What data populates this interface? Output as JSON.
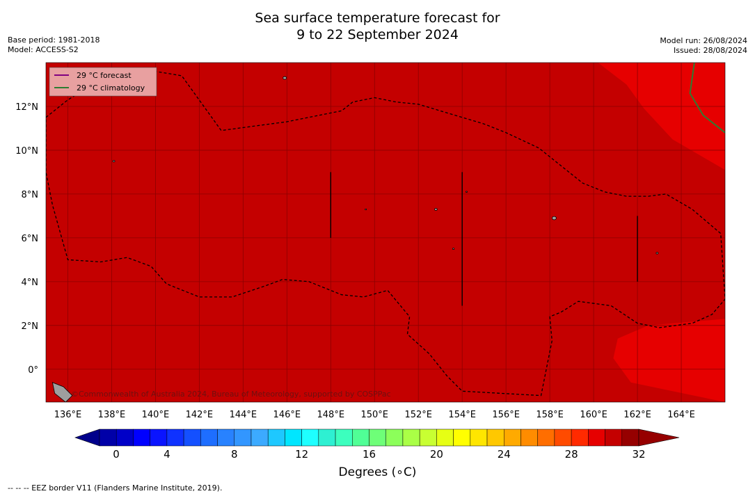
{
  "title_line1": "Sea surface temperature forecast for",
  "title_line2": "9 to 22 September 2024",
  "base_period": "Base period: 1981-2018",
  "model": "Model: ACCESS-S2",
  "model_run": "Model run: 26/08/2024",
  "issued": "Issued: 28/08/2024",
  "copyright": "©Commonwealth of Australia 2024, Bureau of Meteorology, supported by COSPPac",
  "footer_note": "--  --  -- EEZ border V11 (Flanders Marine Institute, 2019).",
  "colorbar_label": "Degrees (∘C)",
  "colors": {
    "sst_29_30": "#c40000",
    "sst_30_31": "#e60000",
    "forecast_line": "#800080",
    "climatology_line": "#2e7d32",
    "eez_line": "#000000",
    "land": "#9e9e9e"
  },
  "chart_data": {
    "type": "heatmap",
    "variable": "Sea surface temperature (°C)",
    "xlim": [
      135,
      166
    ],
    "ylim": [
      -1.5,
      14
    ],
    "x_ticks": [
      136,
      138,
      140,
      142,
      144,
      146,
      148,
      150,
      152,
      154,
      156,
      158,
      160,
      162,
      164
    ],
    "x_tick_labels": [
      "136°E",
      "138°E",
      "140°E",
      "142°E",
      "144°E",
      "146°E",
      "148°E",
      "150°E",
      "152°E",
      "154°E",
      "156°E",
      "158°E",
      "160°E",
      "162°E",
      "164°E"
    ],
    "y_ticks": [
      0,
      2,
      4,
      6,
      8,
      10,
      12
    ],
    "y_tick_labels": [
      "0°",
      "2°N",
      "4°N",
      "6°N",
      "8°N",
      "10°N",
      "12°N"
    ],
    "grid": true,
    "background_value_range": [
      29,
      30
    ],
    "warm_regions": [
      {
        "value_range": [
          30,
          31
        ],
        "polygon": [
          [
            160.2,
            14
          ],
          [
            166,
            14
          ],
          [
            166,
            9.1
          ],
          [
            163.6,
            10.5
          ],
          [
            162.3,
            11.9
          ],
          [
            161.5,
            13.0
          ]
        ]
      },
      {
        "value_range": [
          30,
          31
        ],
        "polygon": [
          [
            166,
            2.3
          ],
          [
            162.5,
            2.0
          ],
          [
            161.1,
            1.4
          ],
          [
            160.9,
            0.5
          ],
          [
            161.7,
            -0.6
          ],
          [
            163.6,
            -1.0
          ],
          [
            166,
            -1.5
          ]
        ]
      }
    ],
    "eez_border": [
      [
        135.0,
        11.5
      ],
      [
        136.0,
        12.3
      ],
      [
        138.0,
        13.5
      ],
      [
        140.0,
        13.6
      ],
      [
        141.2,
        13.4
      ],
      [
        143.0,
        10.9
      ],
      [
        146.0,
        11.3
      ],
      [
        148.0,
        11.7
      ],
      [
        148.5,
        11.8
      ],
      [
        149.0,
        12.2
      ],
      [
        150.0,
        12.4
      ],
      [
        151.0,
        12.2
      ],
      [
        152.0,
        12.1
      ],
      [
        153.0,
        11.8
      ],
      [
        154.0,
        11.5
      ],
      [
        155.0,
        11.2
      ],
      [
        156.0,
        10.8
      ],
      [
        157.5,
        10.1
      ],
      [
        158.5,
        9.3
      ],
      [
        159.5,
        8.5
      ],
      [
        160.5,
        8.1
      ],
      [
        161.5,
        7.9
      ],
      [
        162.5,
        7.9
      ],
      [
        163.3,
        8.0
      ],
      [
        164.5,
        7.3
      ],
      [
        165.8,
        6.2
      ],
      [
        166.0,
        3.2
      ],
      [
        165.4,
        2.5
      ],
      [
        164.5,
        2.1
      ],
      [
        163.0,
        1.9
      ],
      [
        162.0,
        2.1
      ],
      [
        160.8,
        2.9
      ],
      [
        159.3,
        3.1
      ],
      [
        158.5,
        2.6
      ],
      [
        158.0,
        2.4
      ],
      [
        158.1,
        1.3
      ],
      [
        157.6,
        -1.2
      ],
      [
        154.0,
        -1.0
      ],
      [
        153.3,
        -0.3
      ],
      [
        152.5,
        0.7
      ],
      [
        151.5,
        1.6
      ],
      [
        151.6,
        2.4
      ],
      [
        150.6,
        3.6
      ],
      [
        149.5,
        3.3
      ],
      [
        148.5,
        3.4
      ],
      [
        147.0,
        4.0
      ],
      [
        145.8,
        4.1
      ],
      [
        145.0,
        3.8
      ],
      [
        143.5,
        3.3
      ],
      [
        142.0,
        3.3
      ],
      [
        140.5,
        3.9
      ],
      [
        139.8,
        4.7
      ],
      [
        138.7,
        5.1
      ],
      [
        137.5,
        4.9
      ],
      [
        136.0,
        5.0
      ],
      [
        135.3,
        7.5
      ],
      [
        135.0,
        9.0
      ]
    ],
    "series": [
      {
        "name": "29 °C  forecast",
        "color": "#800080",
        "line": []
      },
      {
        "name": "29 °C  climatology",
        "color": "#2e7d32",
        "line": [
          [
            164.6,
            14
          ],
          [
            164.4,
            12.6
          ],
          [
            165.0,
            11.6
          ],
          [
            166.0,
            10.8
          ]
        ]
      }
    ],
    "legend_position": "top-left",
    "colorbar": {
      "min": 0,
      "max": 32,
      "step": 1,
      "ticks": [
        0,
        4,
        8,
        12,
        16,
        20,
        24,
        28,
        32
      ],
      "tick_labels": [
        "0",
        "4",
        "8",
        "12",
        "16",
        "20",
        "24",
        "28",
        "32"
      ],
      "extend": "both",
      "colors": [
        "#00008b",
        "#0000a8",
        "#0000c8",
        "#0000ff",
        "#0a14ff",
        "#0f32ff",
        "#1450ff",
        "#1e6eff",
        "#2882ff",
        "#3296ff",
        "#3caaff",
        "#1ec8ff",
        "#00e6ff",
        "#1effff",
        "#2ef0d2",
        "#3cffbe",
        "#50ff96",
        "#6eff78",
        "#8cff5a",
        "#aaff46",
        "#c8ff32",
        "#e6ff14",
        "#ffff00",
        "#ffe600",
        "#ffc800",
        "#ffaa00",
        "#ff8c00",
        "#ff6e00",
        "#ff4b00",
        "#ff2a00",
        "#e60000",
        "#c40000",
        "#960000"
      ]
    }
  }
}
